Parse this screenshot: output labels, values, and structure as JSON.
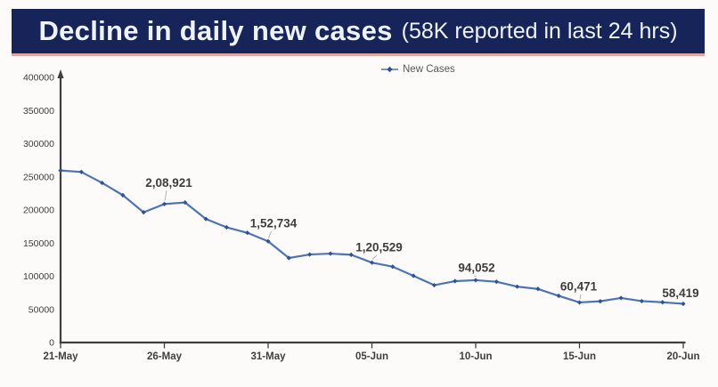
{
  "header": {
    "title": "Decline in daily new cases",
    "subtitle": "(58K reported in last 24 hrs)"
  },
  "legend": {
    "label": "New Cases"
  },
  "colors": {
    "header_bg": "#16245a",
    "header_text": "#eef2fb",
    "header_underline": "#e2a79c",
    "line": "#4d74b8",
    "marker": "#2e5395",
    "axis": "#3f3f3f",
    "tick_label": "#404040",
    "data_label": "#3d3d3d",
    "leader_line": "#a9a9a9",
    "legend_text": "#595959"
  },
  "chart_data": {
    "type": "line",
    "title": "Decline in daily new cases (58K reported in last 24 hrs)",
    "xlabel": "",
    "ylabel": "",
    "ylim": [
      0,
      400000
    ],
    "grid": false,
    "legend_position": "top-center",
    "x": [
      "21-May",
      "22-May",
      "23-May",
      "24-May",
      "25-May",
      "26-May",
      "27-May",
      "28-May",
      "29-May",
      "30-May",
      "31-May",
      "01-Jun",
      "02-Jun",
      "03-Jun",
      "04-Jun",
      "05-Jun",
      "06-Jun",
      "07-Jun",
      "08-Jun",
      "09-Jun",
      "10-Jun",
      "11-Jun",
      "12-Jun",
      "13-Jun",
      "14-Jun",
      "15-Jun",
      "16-Jun",
      "17-Jun",
      "18-Jun",
      "19-Jun",
      "20-Jun"
    ],
    "series": [
      {
        "name": "New Cases",
        "values": [
          259591,
          257299,
          240842,
          222315,
          196427,
          208921,
          211298,
          186364,
          173790,
          165553,
          152734,
          127510,
          132788,
          134154,
          132364,
          120529,
          114460,
          100636,
          86498,
          92596,
          94052,
          91702,
          84332,
          80834,
          70421,
          60471,
          62224,
          67208,
          62480,
          60753,
          58419
        ]
      }
    ],
    "x_axis_ticks": [
      "21-May",
      "26-May",
      "31-May",
      "05-Jun",
      "10-Jun",
      "15-Jun",
      "20-Jun"
    ],
    "y_axis_tick_labels": [
      "0",
      "50000",
      "100000",
      "150000",
      "200000",
      "250000",
      "300000",
      "350000",
      "400000"
    ],
    "y_axis_tick_values": [
      0,
      50000,
      100000,
      150000,
      200000,
      250000,
      300000,
      350000,
      400000
    ],
    "data_labels": [
      {
        "date": "26-May",
        "value": 208921,
        "text": "2,08,921"
      },
      {
        "date": "31-May",
        "value": 152734,
        "text": "1,52,734"
      },
      {
        "date": "05-Jun",
        "value": 120529,
        "text": "1,20,529"
      },
      {
        "date": "10-Jun",
        "value": 94052,
        "text": "94,052"
      },
      {
        "date": "15-Jun",
        "value": 60471,
        "text": "60,471"
      },
      {
        "date": "20-Jun",
        "value": 58419,
        "text": "58,419"
      }
    ]
  }
}
